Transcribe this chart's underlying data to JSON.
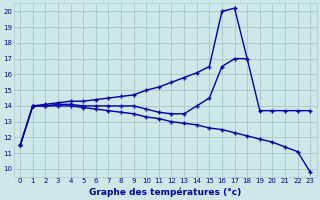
{
  "xlabel": "Graphe des températures (°c)",
  "bg_color": "#cce8e8",
  "grid_color": "#aacccc",
  "line_color": "#0000aa",
  "xlim": [
    -0.5,
    23.5
  ],
  "ylim": [
    9.5,
    20.5
  ],
  "yticks": [
    10,
    11,
    12,
    13,
    14,
    15,
    16,
    17,
    18,
    19,
    20
  ],
  "xticks": [
    0,
    1,
    2,
    3,
    4,
    5,
    6,
    7,
    8,
    9,
    10,
    11,
    12,
    13,
    14,
    15,
    16,
    17,
    18,
    19,
    20,
    21,
    22,
    23
  ],
  "line1_x": [
    0,
    1,
    2,
    3,
    4,
    5,
    6,
    7,
    8,
    9,
    10,
    11,
    12,
    13,
    14,
    15,
    16,
    17,
    18
  ],
  "line1_y": [
    11.5,
    14.0,
    14.1,
    14.2,
    14.3,
    14.3,
    14.4,
    14.5,
    14.6,
    14.7,
    15.0,
    15.2,
    15.5,
    15.8,
    16.1,
    16.5,
    20.0,
    20.2,
    17.0
  ],
  "line2_x": [
    0,
    1,
    2,
    3,
    4,
    5,
    6,
    7,
    8,
    9,
    10,
    11,
    12,
    13,
    14,
    15,
    16,
    17,
    18,
    19,
    20,
    21,
    22,
    23
  ],
  "line2_y": [
    11.5,
    14.0,
    14.0,
    14.1,
    14.1,
    14.0,
    14.0,
    14.0,
    14.0,
    14.0,
    13.8,
    13.6,
    13.5,
    13.5,
    14.0,
    14.5,
    16.5,
    17.0,
    17.0,
    13.7,
    13.7,
    13.7,
    13.7,
    13.7
  ],
  "line3_x": [
    0,
    1,
    2,
    3,
    4,
    5,
    6,
    7,
    8,
    9,
    10,
    11,
    12,
    13,
    14,
    15,
    16,
    17,
    18,
    19,
    20,
    21,
    22,
    23
  ],
  "line3_y": [
    11.5,
    14.0,
    14.0,
    14.0,
    14.0,
    13.9,
    13.8,
    13.7,
    13.6,
    13.5,
    13.3,
    13.2,
    13.0,
    12.9,
    12.8,
    12.6,
    12.5,
    12.3,
    12.1,
    11.9,
    11.7,
    11.4,
    11.1,
    9.8
  ]
}
